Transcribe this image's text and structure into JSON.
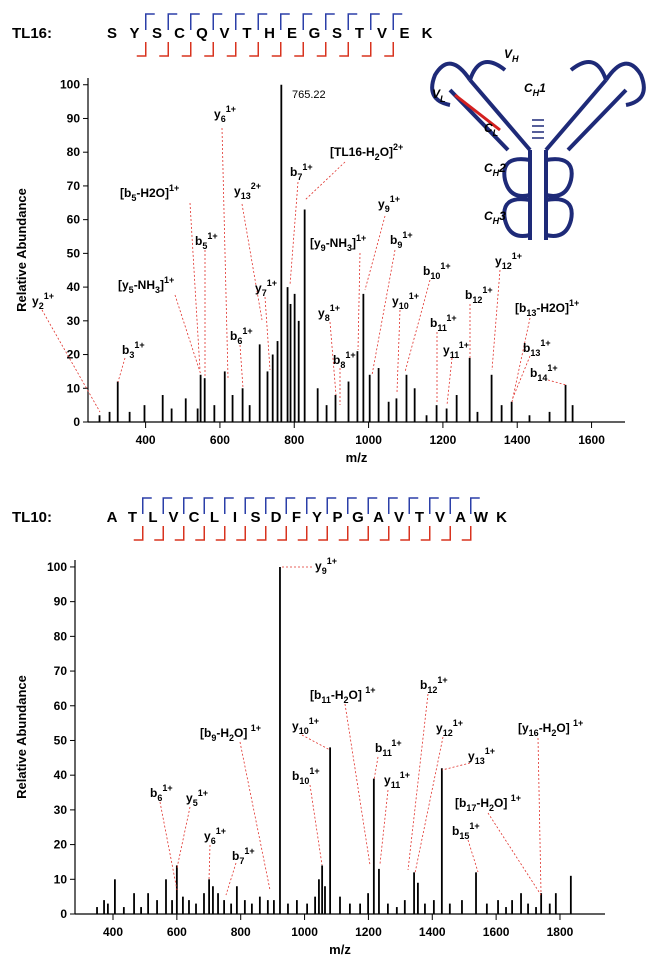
{
  "chart_data": [
    {
      "type": "stick",
      "sequence_label": "TL16:",
      "sequence": [
        "S",
        "Y",
        "S",
        "C",
        "Q",
        "V",
        "T",
        "H",
        "E",
        "G",
        "S",
        "T",
        "V",
        "E",
        "K"
      ],
      "x_label": "m/z",
      "y_label": "Relative Abundance",
      "xlim": [
        245,
        1690
      ],
      "ylim": [
        0,
        102
      ],
      "xticks": [
        400,
        600,
        800,
        1000,
        1200,
        1400,
        1600
      ],
      "yticks": [
        0,
        10,
        20,
        30,
        40,
        50,
        60,
        70,
        80,
        90,
        100
      ],
      "color": "#000000",
      "x": [
        276,
        303,
        325,
        357,
        397,
        446,
        470,
        508,
        540,
        548,
        559,
        585,
        613,
        634,
        661,
        680,
        707,
        728,
        742,
        755,
        765.22,
        782,
        790,
        801,
        812,
        828,
        863,
        887,
        911,
        946,
        970,
        986,
        1003,
        1027,
        1054,
        1075,
        1102,
        1124,
        1156,
        1183,
        1210,
        1237,
        1272,
        1293,
        1331,
        1358,
        1385,
        1433,
        1487,
        1530,
        1549
      ],
      "values": [
        2,
        3,
        12,
        3,
        5,
        8,
        4,
        7,
        4,
        14,
        13,
        5,
        15,
        8,
        10,
        5,
        23,
        15,
        20,
        24,
        100,
        40,
        35,
        38,
        30,
        63,
        10,
        5,
        8,
        12,
        21,
        38,
        14,
        16,
        6,
        7,
        14,
        10,
        2,
        5,
        4,
        8,
        19,
        3,
        14,
        5,
        6,
        2,
        3,
        11,
        5
      ],
      "annotations": [
        [
          [
            "y"
          ],
          [
            "6",
            "sub"
          ],
          [
            "1+",
            "sup"
          ]
        ],
        [
          [
            "[TL16-H"
          ],
          [
            "2",
            "sub"
          ],
          [
            "O]"
          ],
          [
            "2+",
            "sup"
          ]
        ],
        [
          [
            "b"
          ],
          [
            "7",
            "sub"
          ],
          [
            "1+",
            "sup"
          ]
        ],
        [
          [
            "[b"
          ],
          [
            "5",
            "sub"
          ],
          [
            "-H2O]"
          ],
          [
            "1+",
            "sup"
          ]
        ],
        [
          [
            "y"
          ],
          [
            "13",
            "sub"
          ],
          [
            "2+",
            "sup"
          ]
        ],
        [
          [
            "y"
          ],
          [
            "9",
            "sub"
          ],
          [
            "1+",
            "sup"
          ]
        ],
        [
          [
            "b"
          ],
          [
            "5",
            "sub"
          ],
          [
            "1+",
            "sup"
          ]
        ],
        [
          [
            "[y"
          ],
          [
            "9",
            "sub"
          ],
          [
            "-NH"
          ],
          [
            "3",
            "sub"
          ],
          [
            "]"
          ],
          [
            "1+",
            "sup"
          ]
        ],
        [
          [
            "b"
          ],
          [
            "9",
            "sub"
          ],
          [
            "1+",
            "sup"
          ]
        ],
        [
          [
            "y"
          ],
          [
            "7",
            "sub"
          ],
          [
            "1+",
            "sup"
          ]
        ],
        [
          [
            "b"
          ],
          [
            "10",
            "sub"
          ],
          [
            "1+",
            "sup"
          ]
        ],
        [
          [
            "y"
          ],
          [
            "12",
            "sub"
          ],
          [
            "1+",
            "sup"
          ]
        ],
        [
          [
            "y"
          ],
          [
            "2",
            "sub"
          ],
          [
            "1+",
            "sup"
          ]
        ],
        [
          [
            "[y"
          ],
          [
            "5",
            "sub"
          ],
          [
            "-NH"
          ],
          [
            "3",
            "sub"
          ],
          [
            "]"
          ],
          [
            "1+",
            "sup"
          ]
        ],
        [
          [
            "b"
          ],
          [
            "12",
            "sub"
          ],
          [
            "1+",
            "sup"
          ]
        ],
        [
          [
            "y"
          ],
          [
            "10",
            "sub"
          ],
          [
            "1+",
            "sup"
          ]
        ],
        [
          [
            "[b"
          ],
          [
            "13",
            "sub"
          ],
          [
            "-H2O]"
          ],
          [
            "1+",
            "sup"
          ]
        ],
        [
          [
            "b"
          ],
          [
            "11",
            "sub"
          ],
          [
            "1+",
            "sup"
          ]
        ],
        [
          [
            "y"
          ],
          [
            "8",
            "sub"
          ],
          [
            "1+",
            "sup"
          ]
        ],
        [
          [
            "b"
          ],
          [
            "6",
            "sub"
          ],
          [
            "1+",
            "sup"
          ]
        ],
        [
          [
            "b"
          ],
          [
            "3",
            "sub"
          ],
          [
            "1+",
            "sup"
          ]
        ],
        [
          [
            "y"
          ],
          [
            "11",
            "sub"
          ],
          [
            "1+",
            "sup"
          ]
        ],
        [
          [
            "b"
          ],
          [
            "8",
            "sub"
          ],
          [
            "1+",
            "sup"
          ]
        ],
        [
          [
            "b"
          ],
          [
            "13",
            "sub"
          ],
          [
            "1+",
            "sup"
          ]
        ],
        [
          [
            "b"
          ],
          [
            "14",
            "sub"
          ],
          [
            "1+",
            "sup"
          ]
        ]
      ],
      "inset_labels": [
        [
          [
            "V"
          ],
          [
            "H",
            "sub"
          ]
        ],
        [
          [
            "V"
          ],
          [
            "L",
            "sub"
          ]
        ],
        [
          [
            "C"
          ],
          [
            "H",
            "sub"
          ],
          [
            "1"
          ]
        ],
        [
          [
            "C"
          ],
          [
            "L",
            "sub"
          ]
        ],
        [
          [
            "C"
          ],
          [
            "H",
            "sub"
          ],
          [
            "2"
          ]
        ],
        [
          [
            "C"
          ],
          [
            "H",
            "sub"
          ],
          [
            "3"
          ]
        ]
      ]
    },
    {
      "type": "stick",
      "sequence_label": "TL10:",
      "sequence": [
        "A",
        "T",
        "L",
        "V",
        "C",
        "L",
        "I",
        "S",
        "D",
        "F",
        "Y",
        "P",
        "G",
        "A",
        "V",
        "T",
        "V",
        "A",
        "W",
        "K"
      ],
      "x_label": "m/z",
      "y_label": "Relative Abundance",
      "xlim": [
        281,
        1941
      ],
      "ylim": [
        0,
        102
      ],
      "xticks": [
        400,
        600,
        800,
        1000,
        1200,
        1400,
        1600,
        1800
      ],
      "yticks": [
        0,
        10,
        20,
        30,
        40,
        50,
        60,
        70,
        80,
        90,
        100
      ],
      "color": "#000000",
      "x": [
        350,
        372,
        384,
        406,
        434,
        466,
        488,
        510,
        538,
        566,
        585,
        600,
        619,
        638,
        660,
        685,
        701,
        713,
        729,
        748,
        770,
        788,
        813,
        835,
        860,
        885,
        904,
        923,
        948,
        976,
        1008,
        1033,
        1045,
        1055,
        1064,
        1080,
        1111,
        1142,
        1174,
        1199,
        1217,
        1233,
        1261,
        1289,
        1314,
        1343,
        1355,
        1377,
        1405,
        1430,
        1455,
        1493,
        1537,
        1571,
        1606,
        1631,
        1650,
        1678,
        1700,
        1725,
        1741,
        1768,
        1787,
        1834
      ],
      "values": [
        2,
        4,
        3,
        10,
        2,
        6,
        2,
        6,
        4,
        10,
        4,
        14,
        5,
        4,
        3,
        6,
        10,
        8,
        6,
        4,
        3,
        8,
        4,
        3,
        5,
        4,
        4,
        100,
        3,
        4,
        3,
        5,
        10,
        14,
        8,
        48,
        5,
        3,
        3,
        6,
        39,
        13,
        3,
        2,
        4,
        12,
        9,
        3,
        4,
        42,
        3,
        4,
        12,
        3,
        4,
        2,
        4,
        6,
        3,
        2,
        6,
        3,
        6,
        11
      ],
      "annotations": [
        [
          [
            "y"
          ],
          [
            "9",
            "sub"
          ],
          [
            "1+",
            "sup"
          ]
        ],
        [
          [
            "[b"
          ],
          [
            "11",
            "sub"
          ],
          [
            "-H"
          ],
          [
            "2",
            "sub"
          ],
          [
            "O] "
          ],
          [
            "1+",
            "sup"
          ]
        ],
        [
          [
            "b"
          ],
          [
            "12",
            "sub"
          ],
          [
            "1+",
            "sup"
          ]
        ],
        [
          [
            "y"
          ],
          [
            "10",
            "sub"
          ],
          [
            "1+",
            "sup"
          ]
        ],
        [
          [
            "[b"
          ],
          [
            "9",
            "sub"
          ],
          [
            "-H"
          ],
          [
            "2",
            "sub"
          ],
          [
            "O] "
          ],
          [
            "1+",
            "sup"
          ]
        ],
        [
          [
            "y"
          ],
          [
            "12",
            "sub"
          ],
          [
            "1+",
            "sup"
          ]
        ],
        [
          [
            "b"
          ],
          [
            "11",
            "sub"
          ],
          [
            "1+",
            "sup"
          ]
        ],
        [
          [
            "y"
          ],
          [
            "13",
            "sub"
          ],
          [
            "1+",
            "sup"
          ]
        ],
        [
          [
            "[y"
          ],
          [
            "16",
            "sub"
          ],
          [
            "-H"
          ],
          [
            "2",
            "sub"
          ],
          [
            "O] "
          ],
          [
            "1+",
            "sup"
          ]
        ],
        [
          [
            "y"
          ],
          [
            "11",
            "sub"
          ],
          [
            "1+",
            "sup"
          ]
        ],
        [
          [
            "b"
          ],
          [
            "10",
            "sub"
          ],
          [
            "1+",
            "sup"
          ]
        ],
        [
          [
            "b"
          ],
          [
            "6",
            "sub"
          ],
          [
            "1+",
            "sup"
          ]
        ],
        [
          [
            "y"
          ],
          [
            "5",
            "sub"
          ],
          [
            "1+",
            "sup"
          ]
        ],
        [
          [
            "y"
          ],
          [
            "6",
            "sub"
          ],
          [
            "1+",
            "sup"
          ]
        ],
        [
          [
            "[b"
          ],
          [
            "17",
            "sub"
          ],
          [
            "-H"
          ],
          [
            "2",
            "sub"
          ],
          [
            "O] "
          ],
          [
            "1+",
            "sup"
          ]
        ],
        [
          [
            "b"
          ],
          [
            "15",
            "sub"
          ],
          [
            "1+",
            "sup"
          ]
        ],
        [
          [
            "b"
          ],
          [
            "7",
            "sub"
          ],
          [
            "1+",
            "sup"
          ]
        ]
      ]
    }
  ]
}
